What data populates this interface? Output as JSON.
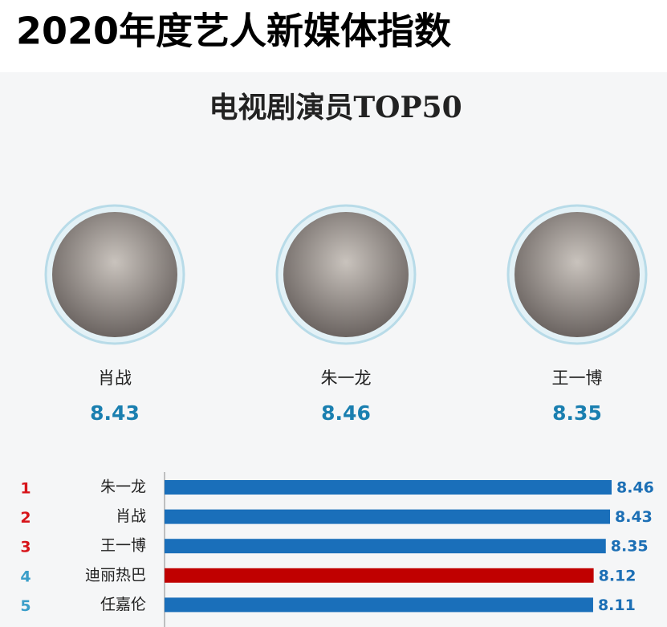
{
  "header": {
    "title": "2020年度艺人新媒体指数",
    "subtitle": "电视剧演员TOP50"
  },
  "featured": [
    {
      "name": "肖战",
      "value": 8.43
    },
    {
      "name": "朱一龙",
      "value": 8.46
    },
    {
      "name": "王一博",
      "value": 8.35
    }
  ],
  "chart_data": {
    "type": "bar",
    "ranks": [
      1,
      2,
      3,
      4,
      5
    ],
    "rank_colors": [
      "#d7141a",
      "#d7141a",
      "#d7141a",
      "#3a9ec9",
      "#3a9ec9"
    ],
    "categories": [
      "朱一龙",
      "肖战",
      "王一博",
      "迪丽热巴",
      "任嘉伦"
    ],
    "values": [
      8.46,
      8.43,
      8.35,
      8.12,
      8.11
    ],
    "colors": [
      "#1a6fba",
      "#1a6fba",
      "#1a6fba",
      "#c00000",
      "#1a6fba"
    ]
  }
}
